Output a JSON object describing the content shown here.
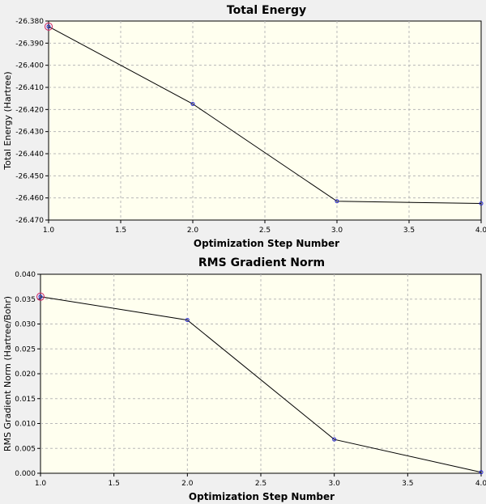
{
  "chart_data": [
    {
      "type": "line",
      "title": "Total Energy",
      "xlabel": "Optimization Step Number",
      "ylabel": "Total Energy (Hartree)",
      "x": [
        1,
        2,
        3,
        4
      ],
      "series": [
        {
          "values": [
            -26.3825,
            -26.4175,
            -26.4615,
            -26.4625
          ]
        }
      ],
      "xlim": [
        1.0,
        4.0
      ],
      "ylim": [
        -26.47,
        -26.38
      ],
      "xticks": [
        1.0,
        1.5,
        2.0,
        2.5,
        3.0,
        3.5,
        4.0
      ],
      "xtick_labels": [
        "1.0",
        "1.5",
        "2.0",
        "2.5",
        "3.0",
        "3.5",
        "4.0"
      ],
      "yticks": [
        -26.38,
        -26.39,
        -26.4,
        -26.41,
        -26.42,
        -26.43,
        -26.44,
        -26.45,
        -26.46,
        -26.47
      ],
      "ytick_labels": [
        "-26.380",
        "-26.390",
        "-26.400",
        "-26.410",
        "-26.420",
        "-26.430",
        "-26.440",
        "-26.450",
        "-26.460",
        "-26.470"
      ],
      "grid": true,
      "plot_background": "#ffffef",
      "line_color": "#000000",
      "marker_color": "#2222cc",
      "highlight_color": "#cc2266",
      "highlight_index": 0
    },
    {
      "type": "line",
      "title": "RMS Gradient Norm",
      "xlabel": "Optimization Step Number",
      "ylabel": "RMS Gradient Norm (Hartree/Bohr)",
      "x": [
        1,
        2,
        3,
        4
      ],
      "series": [
        {
          "values": [
            0.0355,
            0.0308,
            0.0068,
            0.0002
          ]
        }
      ],
      "xlim": [
        1.0,
        4.0
      ],
      "ylim": [
        0.0,
        0.04
      ],
      "xticks": [
        1.0,
        1.5,
        2.0,
        2.5,
        3.0,
        3.5,
        4.0
      ],
      "xtick_labels": [
        "1.0",
        "1.5",
        "2.0",
        "2.5",
        "3.0",
        "3.5",
        "4.0"
      ],
      "yticks": [
        0.0,
        0.005,
        0.01,
        0.015,
        0.02,
        0.025,
        0.03,
        0.035,
        0.04
      ],
      "ytick_labels": [
        "0.000",
        "0.005",
        "0.010",
        "0.015",
        "0.020",
        "0.025",
        "0.030",
        "0.035",
        "0.040"
      ],
      "grid": true,
      "plot_background": "#ffffef",
      "line_color": "#000000",
      "marker_color": "#2222cc",
      "highlight_color": "#cc2266",
      "highlight_index": 0
    }
  ]
}
